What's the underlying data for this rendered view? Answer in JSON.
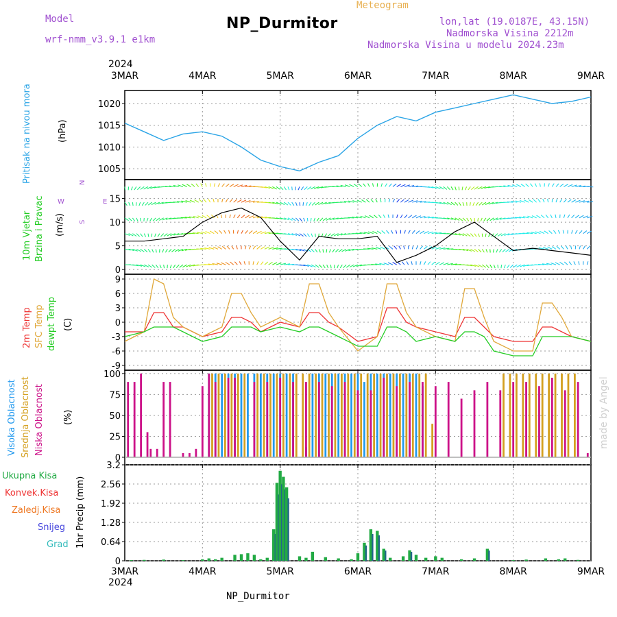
{
  "header": {
    "model_label": "Model",
    "model_name": "wrf-nmm_v3.9.1  e1km",
    "title": "NP_Durmitor",
    "meteogram_label": "Meteogram",
    "coords": "lon,lat (19.0187E, 43.15N)",
    "elevation": "Nadmorska Visina 2212m",
    "model_elevation": "Nadmorska Visina u modelu 2024.23m",
    "credit": "made by Angel",
    "footer_station": "NP_Durmitor"
  },
  "time_axis": {
    "year": "2024",
    "labels": [
      "3MAR",
      "4MAR",
      "5MAR",
      "6MAR",
      "7MAR",
      "8MAR",
      "9MAR"
    ]
  },
  "panels": {
    "pressure": {
      "name": "Pritisak na nivou mora",
      "unit": "(hPa)",
      "ticks": [
        "1005",
        "1010",
        "1015",
        "1020"
      ]
    },
    "wind": {
      "name": "10m Vjetar",
      "name2": "Brzina i Pravac",
      "unit": "(m/s)",
      "ticks": [
        "0",
        "5",
        "10",
        "15"
      ],
      "compass": [
        "N",
        "E",
        "S",
        "W"
      ]
    },
    "temp": {
      "name_2m": "2m Temp",
      "name_sfc": "SFC Temp",
      "name_dew": "dewpt Temp",
      "unit": "(C)",
      "ticks": [
        "-9",
        "-6",
        "-3",
        "0",
        "3",
        "6",
        "9"
      ]
    },
    "cloud": {
      "name_high": "Visoka Oblacnost",
      "name_mid": "Srednja Oblacnost",
      "name_low": "Niska Oblacnost",
      "unit": "(%)",
      "ticks": [
        "0",
        "25",
        "50",
        "75",
        "100"
      ]
    },
    "precip": {
      "legend": [
        "Ukupna Kisa",
        "Konvek.Kisa",
        "Zaledj.Kisa",
        "Snijeg",
        "Grad"
      ],
      "ylabel": "1hr Precip (mm)",
      "ticks": [
        "0",
        "0.64",
        "1.28",
        "1.92",
        "2.56",
        "3.2"
      ]
    }
  },
  "colors": {
    "pressure": "#2aa4e6",
    "temp2m": "#ee3333",
    "sfc": "#e0a83a",
    "dewpt": "#22cc22",
    "cloud_high": "#2299ee",
    "cloud_mid": "#d4a020",
    "cloud_low": "#cc1188",
    "precip_total": "#22aa44",
    "precip_conv": "#ee3333",
    "precip_frz": "#ee7722",
    "precip_snow": "#4444dd",
    "precip_grad": "#33bbbb",
    "header_purple": "#a050d0",
    "header_orange": "#e8b050"
  },
  "chart_data": [
    {
      "type": "line",
      "title": "Pritisak na nivou mora",
      "ylabel": "(hPa)",
      "ylim": [
        1002.5,
        1023
      ],
      "x_unit": "hours from 3MAR 00",
      "series": [
        {
          "name": "Pritisak na nivou mora",
          "x": [
            0,
            6,
            12,
            18,
            24,
            30,
            36,
            42,
            48,
            54,
            60,
            66,
            72,
            78,
            84,
            90,
            96,
            102,
            108,
            114,
            120,
            126,
            132,
            138,
            144
          ],
          "values": [
            1015.5,
            1013.5,
            1011.5,
            1013,
            1013.5,
            1012.5,
            1010,
            1007,
            1005.5,
            1004.5,
            1006.5,
            1008,
            1012,
            1015,
            1017,
            1016,
            1018,
            1019,
            1020,
            1021,
            1022,
            1021,
            1020,
            1020.5,
            1021.5
          ]
        }
      ]
    },
    {
      "type": "line",
      "title": "10m Vjetar",
      "ylabel": "(m/s)",
      "ylim": [
        -1,
        19
      ],
      "x_unit": "hours from 3MAR 00",
      "series": [
        {
          "name": "10m Vjetar",
          "x": [
            0,
            6,
            12,
            18,
            24,
            30,
            36,
            42,
            48,
            54,
            60,
            66,
            72,
            78,
            84,
            90,
            96,
            102,
            108,
            114,
            120,
            126,
            132,
            138,
            144
          ],
          "values": [
            6,
            6,
            6.5,
            7,
            10,
            12,
            13,
            11,
            6,
            2,
            7,
            6.5,
            6.5,
            7,
            1.5,
            3,
            5,
            8,
            10,
            7,
            4,
            4.5,
            4,
            3.5,
            3
          ]
        }
      ]
    },
    {
      "type": "line",
      "title": "2m Temp / SFC Temp / dewpt Temp",
      "ylabel": "(C)",
      "ylim": [
        -10,
        10
      ],
      "x_unit": "hours from 3MAR 00",
      "x": [
        0,
        6,
        9,
        12,
        15,
        18,
        24,
        30,
        33,
        36,
        39,
        42,
        48,
        54,
        57,
        60,
        63,
        66,
        72,
        78,
        81,
        84,
        87,
        90,
        96,
        102,
        105,
        108,
        111,
        114,
        120,
        126,
        129,
        132,
        135,
        138,
        144
      ],
      "series": [
        {
          "name": "2m Temp",
          "values": [
            -2,
            -2,
            2,
            2,
            -1,
            -1,
            -3,
            -2,
            1,
            1,
            0,
            -2,
            0,
            -1,
            2,
            2,
            0,
            -1,
            -4,
            -3,
            3,
            3,
            0,
            -1,
            -2,
            -3,
            1,
            1,
            -1,
            -3,
            -4,
            -4,
            -1,
            -1,
            -2,
            -3,
            -4
          ]
        },
        {
          "name": "SFC Temp",
          "values": [
            -4,
            -2,
            9,
            8,
            1,
            -1,
            -3,
            -1,
            6,
            6,
            2,
            -1,
            1,
            -1,
            8,
            8,
            2,
            -1,
            -6,
            -3,
            8,
            8,
            2,
            -1,
            -3,
            -4,
            7,
            7,
            1,
            -4,
            -6,
            -6,
            4,
            4,
            1,
            -3,
            -4
          ]
        },
        {
          "name": "dewpt Temp",
          "values": [
            -3,
            -2,
            -1,
            -1,
            -1,
            -2,
            -4,
            -3,
            -1,
            -1,
            -1,
            -2,
            -1,
            -2,
            -1,
            -1,
            -2,
            -3,
            -5,
            -5,
            -1,
            -1,
            -2,
            -4,
            -3,
            -4,
            -2,
            -2,
            -3,
            -6,
            -7,
            -7,
            -3,
            -3,
            -3,
            -3,
            -4
          ]
        }
      ]
    },
    {
      "type": "bar",
      "title": "Oblacnost",
      "ylabel": "(%)",
      "ylim": [
        0,
        100
      ],
      "x_unit": "hours from 3MAR 00",
      "series": [
        {
          "name": "Visoka Oblacnost",
          "x": [
            26,
            28,
            30,
            32,
            34,
            36,
            38,
            40,
            42,
            44,
            46,
            48,
            50,
            52,
            56,
            58,
            60,
            62,
            64,
            66,
            68,
            70,
            72,
            74,
            76,
            78,
            80,
            82,
            84,
            86,
            88,
            90,
            92
          ],
          "values": [
            100,
            100,
            100,
            100,
            100,
            100,
            100,
            100,
            100,
            100,
            100,
            100,
            100,
            100,
            12,
            100,
            100,
            100,
            100,
            100,
            100,
            100,
            100,
            90,
            100,
            100,
            100,
            100,
            100,
            100,
            100,
            100,
            85
          ]
        },
        {
          "name": "Srednja Oblacnost",
          "x": [
            27,
            29,
            31,
            33,
            35,
            37,
            41,
            43,
            45,
            47,
            49,
            51,
            53,
            55,
            57,
            59,
            61,
            63,
            65,
            67,
            69,
            71,
            73,
            75,
            77,
            79,
            81,
            83,
            85,
            87,
            89,
            91,
            93,
            95,
            117,
            119,
            121,
            123,
            125,
            127,
            129,
            131,
            133,
            135,
            137,
            139
          ],
          "values": [
            100,
            100,
            100,
            100,
            100,
            100,
            100,
            100,
            100,
            100,
            100,
            100,
            100,
            100,
            100,
            100,
            100,
            100,
            100,
            100,
            100,
            100,
            100,
            100,
            100,
            100,
            100,
            100,
            100,
            100,
            100,
            100,
            100,
            40,
            100,
            100,
            100,
            100,
            100,
            100,
            100,
            100,
            100,
            100,
            100,
            100
          ]
        },
        {
          "name": "Niska Oblacnost",
          "x": [
            1,
            3,
            5,
            7,
            8,
            10,
            12,
            14,
            18,
            20,
            22,
            24,
            26,
            28,
            32,
            34,
            40,
            44,
            48,
            52,
            56,
            60,
            64,
            68,
            72,
            76,
            80,
            84,
            88,
            92,
            96,
            100,
            104,
            108,
            112,
            116,
            120,
            124,
            128,
            132,
            136,
            140,
            143
          ],
          "values": [
            90,
            90,
            100,
            30,
            10,
            10,
            90,
            90,
            5,
            5,
            10,
            85,
            100,
            90,
            95,
            95,
            90,
            90,
            95,
            90,
            90,
            90,
            85,
            90,
            80,
            80,
            95,
            85,
            90,
            90,
            85,
            90,
            70,
            80,
            90,
            80,
            90,
            90,
            85,
            95,
            80,
            90,
            5
          ]
        }
      ]
    },
    {
      "type": "bar",
      "title": "1hr Precip",
      "ylabel": "1hr Precip (mm)",
      "ylim": [
        0,
        3.2
      ],
      "x_unit": "hours from 3MAR 00",
      "series": [
        {
          "name": "Ukupna Kisa",
          "x": [
            2,
            6,
            12,
            18,
            24,
            26,
            28,
            30,
            34,
            36,
            38,
            40,
            42,
            44,
            46,
            47,
            48,
            49,
            50,
            54,
            56,
            58,
            62,
            66,
            70,
            72,
            74,
            76,
            78,
            80,
            82,
            86,
            88,
            90,
            93,
            96,
            98,
            104,
            108,
            112,
            120,
            124,
            130,
            134,
            136,
            140
          ],
          "values": [
            0.02,
            0.03,
            0.04,
            0.02,
            0.05,
            0.08,
            0.05,
            0.1,
            0.2,
            0.22,
            0.25,
            0.2,
            0.05,
            0.1,
            1.05,
            2.6,
            3.0,
            2.8,
            2.45,
            0.15,
            0.1,
            0.3,
            0.12,
            0.08,
            0.05,
            0.25,
            0.6,
            1.05,
            1.0,
            0.4,
            0.1,
            0.15,
            0.35,
            0.2,
            0.1,
            0.15,
            0.1,
            0.05,
            0.08,
            0.4,
            0.02,
            0.04,
            0.08,
            0.05,
            0.08,
            0.03
          ]
        }
      ]
    }
  ]
}
